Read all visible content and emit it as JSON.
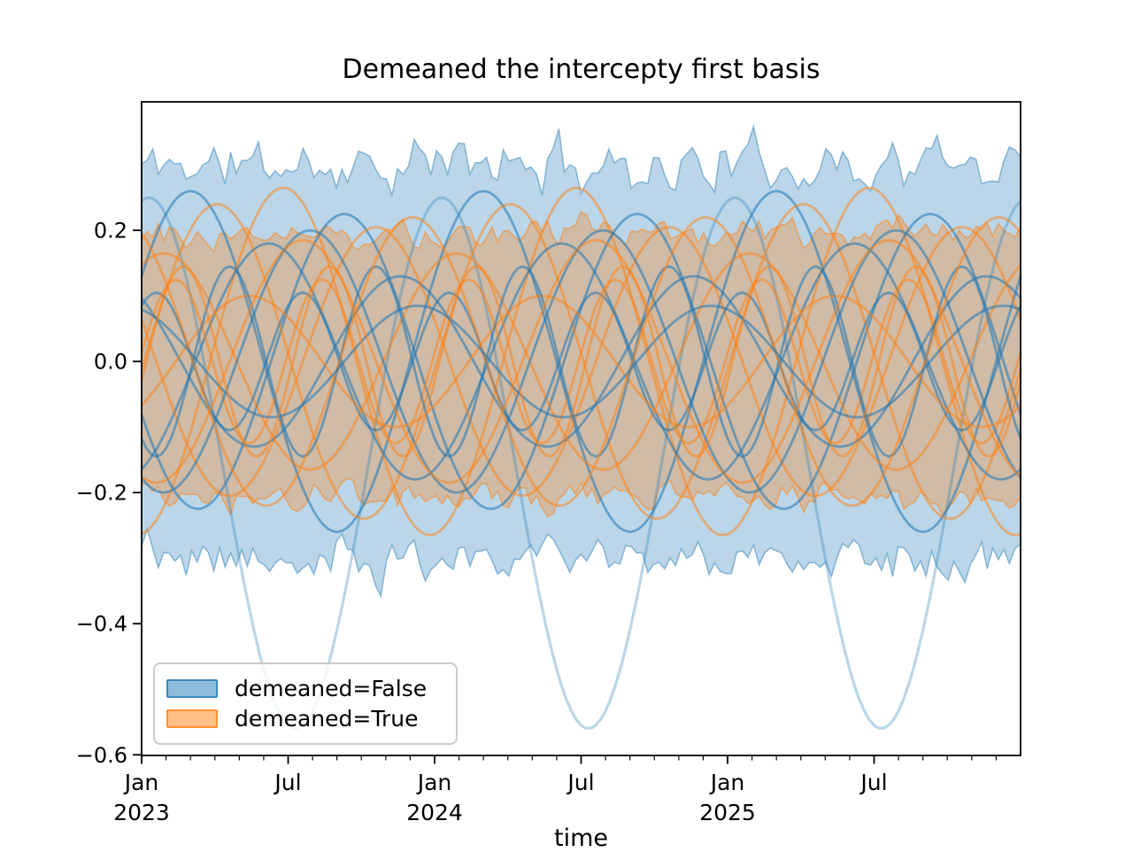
{
  "chart_data": {
    "type": "line",
    "title": "Demeaned the intercepty first basis",
    "xlabel": "time",
    "ylabel": "",
    "grid": false,
    "legend_position": "lower left",
    "x_start": "2023-01",
    "xlim_months": [
      0,
      36
    ],
    "ylim": [
      -0.601,
      0.396
    ],
    "yticks": [
      {
        "value": 0.2,
        "label": "0.2"
      },
      {
        "value": 0.0,
        "label": "0.0"
      },
      {
        "value": -0.2,
        "label": "−0.2"
      },
      {
        "value": -0.4,
        "label": "−0.4"
      },
      {
        "value": -0.6,
        "label": "−0.6"
      }
    ],
    "xticks_major": [
      {
        "month": 0,
        "label": "Jan",
        "year": "2023"
      },
      {
        "month": 6,
        "label": "Jul",
        "year": ""
      },
      {
        "month": 12,
        "label": "Jan",
        "year": "2024"
      },
      {
        "month": 18,
        "label": "Jul",
        "year": ""
      },
      {
        "month": 24,
        "label": "Jan",
        "year": "2025"
      },
      {
        "month": 30,
        "label": "Jul",
        "year": ""
      }
    ],
    "xticks_minor": "monthly",
    "legend": [
      {
        "label": "demeaned=False",
        "color": "#1f77b4"
      },
      {
        "label": "demeaned=True",
        "color": "#ff7f0e"
      }
    ],
    "bands": [
      {
        "group": "demeaned=False",
        "upper_mean": 0.3,
        "upper_noise": 0.05,
        "lower_mean": -0.302,
        "lower_noise": 0.042,
        "fill_alpha": 0.3,
        "edge_alpha": 0.45,
        "seed": 11
      },
      {
        "group": "demeaned=True",
        "upper_mean": 0.197,
        "upper_noise": 0.028,
        "lower_mean": -0.205,
        "lower_noise": 0.026,
        "fill_alpha": 0.3,
        "edge_alpha": 0.5,
        "seed": 77
      }
    ],
    "series": [
      {
        "group": "demeaned=False",
        "mean": -0.155,
        "amplitude": 0.405,
        "peak_month": 0.3,
        "cycles_per_year": 1,
        "alpha": 0.3,
        "width": 3.2
      },
      {
        "group": "demeaned=False",
        "mean": 0,
        "amplitude": 0.26,
        "peak_month": 2.0,
        "cycles_per_year": 1,
        "alpha": 0.55,
        "width": 2.8
      },
      {
        "group": "demeaned=True",
        "mean": 0,
        "amplitude": 0.265,
        "peak_month": 5.8,
        "cycles_per_year": 1,
        "alpha": 0.5,
        "width": 2.8
      },
      {
        "group": "demeaned=False",
        "mean": 0,
        "amplitude": 0.225,
        "peak_month": 8.3,
        "cycles_per_year": 1,
        "alpha": 0.55,
        "width": 2.8
      },
      {
        "group": "demeaned=True",
        "mean": 0,
        "amplitude": 0.24,
        "peak_month": 3.1,
        "cycles_per_year": 1,
        "alpha": 0.5,
        "width": 2.8
      },
      {
        "group": "demeaned=False",
        "mean": 0,
        "amplitude": 0.18,
        "peak_month": 5.2,
        "cycles_per_year": 1,
        "alpha": 0.55,
        "width": 2.8
      },
      {
        "group": "demeaned=True",
        "mean": 0,
        "amplitude": 0.205,
        "peak_month": 9.6,
        "cycles_per_year": 1,
        "alpha": 0.5,
        "width": 2.8
      },
      {
        "group": "demeaned=False",
        "mean": 0,
        "amplitude": 0.13,
        "peak_month": 10.6,
        "cycles_per_year": 1,
        "alpha": 0.55,
        "width": 2.8
      },
      {
        "group": "demeaned=True",
        "mean": 0,
        "amplitude": 0.165,
        "peak_month": 0.9,
        "cycles_per_year": 1,
        "alpha": 0.5,
        "width": 2.8
      },
      {
        "group": "demeaned=False",
        "mean": 0,
        "amplitude": 0.105,
        "peak_month": 0.6,
        "cycles_per_year": 2,
        "alpha": 0.55,
        "width": 2.8
      },
      {
        "group": "demeaned=True",
        "mean": 0,
        "amplitude": 0.125,
        "peak_month": 7.4,
        "cycles_per_year": 2,
        "alpha": 0.5,
        "width": 2.8
      },
      {
        "group": "demeaned=False",
        "mean": 0,
        "amplitude": 0.2,
        "peak_month": 6.9,
        "cycles_per_year": 1,
        "alpha": 0.55,
        "width": 2.8
      },
      {
        "group": "demeaned=True",
        "mean": 0,
        "amplitude": 0.1,
        "peak_month": 4.4,
        "cycles_per_year": 1,
        "alpha": 0.5,
        "width": 2.8
      },
      {
        "group": "demeaned=False",
        "mean": 0,
        "amplitude": 0.145,
        "peak_month": 3.6,
        "cycles_per_year": 2,
        "alpha": 0.55,
        "width": 2.8
      },
      {
        "group": "demeaned=True",
        "mean": 0,
        "amplitude": 0.22,
        "peak_month": 11.1,
        "cycles_per_year": 1,
        "alpha": 0.5,
        "width": 2.8
      },
      {
        "group": "demeaned=False",
        "mean": 0,
        "amplitude": 0.085,
        "peak_month": 11.3,
        "cycles_per_year": 1,
        "alpha": 0.55,
        "width": 2.8
      },
      {
        "group": "demeaned=True",
        "mean": 0,
        "amplitude": 0.145,
        "peak_month": 1.7,
        "cycles_per_year": 2,
        "alpha": 0.5,
        "width": 2.8
      },
      {
        "group": "demeaned=True",
        "mean": 0,
        "amplitude": 0.185,
        "peak_month": 6.6,
        "cycles_per_year": 1,
        "alpha": 0.5,
        "width": 2.8
      }
    ],
    "axis_color": "#000000"
  }
}
